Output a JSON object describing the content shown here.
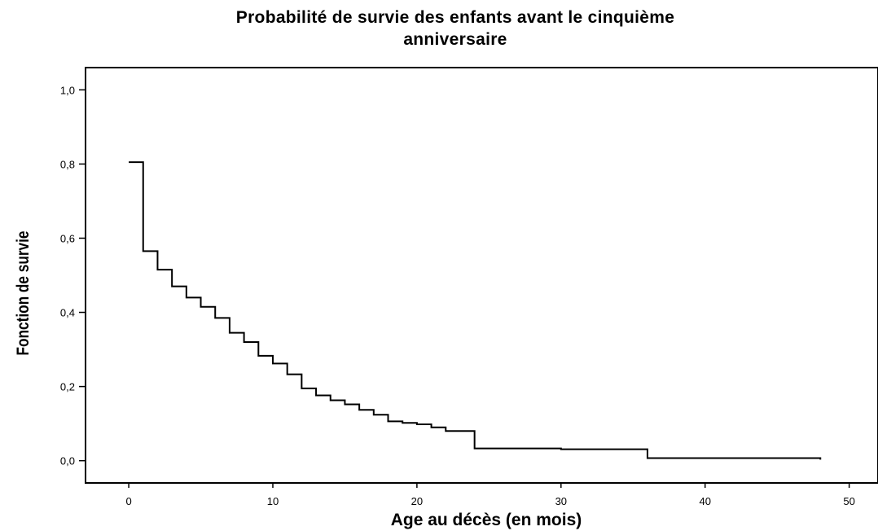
{
  "chart_data": {
    "type": "line",
    "step": true,
    "title_lines": [
      "Probabilité de survie des enfants avant le cinquième",
      "anniversaire"
    ],
    "xlabel": "Age au décès (en mois)",
    "ylabel": "Fonction de survie",
    "xlim": [
      -3,
      52
    ],
    "ylim": [
      -0.06,
      1.06
    ],
    "xticks": [
      {
        "value": 0,
        "label": "0"
      },
      {
        "value": 10,
        "label": "10"
      },
      {
        "value": 20,
        "label": "20"
      },
      {
        "value": 30,
        "label": "30"
      },
      {
        "value": 40,
        "label": "40"
      },
      {
        "value": 50,
        "label": "50"
      }
    ],
    "yticks": [
      {
        "value": 0.0,
        "label": "0,0"
      },
      {
        "value": 0.2,
        "label": "0,2"
      },
      {
        "value": 0.4,
        "label": "0,4"
      },
      {
        "value": 0.6,
        "label": "0,6"
      },
      {
        "value": 0.8,
        "label": "0,8"
      },
      {
        "value": 1.0,
        "label": "1,0"
      }
    ],
    "grid": false,
    "series": [
      {
        "points": [
          [
            0,
            0.805
          ],
          [
            1,
            0.565
          ],
          [
            2,
            0.515
          ],
          [
            3,
            0.47
          ],
          [
            4,
            0.44
          ],
          [
            5,
            0.415
          ],
          [
            6,
            0.385
          ],
          [
            7,
            0.345
          ],
          [
            8,
            0.32
          ],
          [
            9,
            0.283
          ],
          [
            10,
            0.262
          ],
          [
            11,
            0.233
          ],
          [
            12,
            0.195
          ],
          [
            13,
            0.176
          ],
          [
            14,
            0.163
          ],
          [
            15,
            0.152
          ],
          [
            16,
            0.137
          ],
          [
            17,
            0.124
          ],
          [
            18,
            0.106
          ],
          [
            19,
            0.102
          ],
          [
            20,
            0.098
          ],
          [
            21,
            0.09
          ],
          [
            22,
            0.08
          ],
          [
            24,
            0.033
          ],
          [
            30,
            0.031
          ],
          [
            36,
            0.007
          ],
          [
            48,
            0.007
          ]
        ],
        "end_y": 0.003,
        "color": "#000000"
      }
    ]
  }
}
